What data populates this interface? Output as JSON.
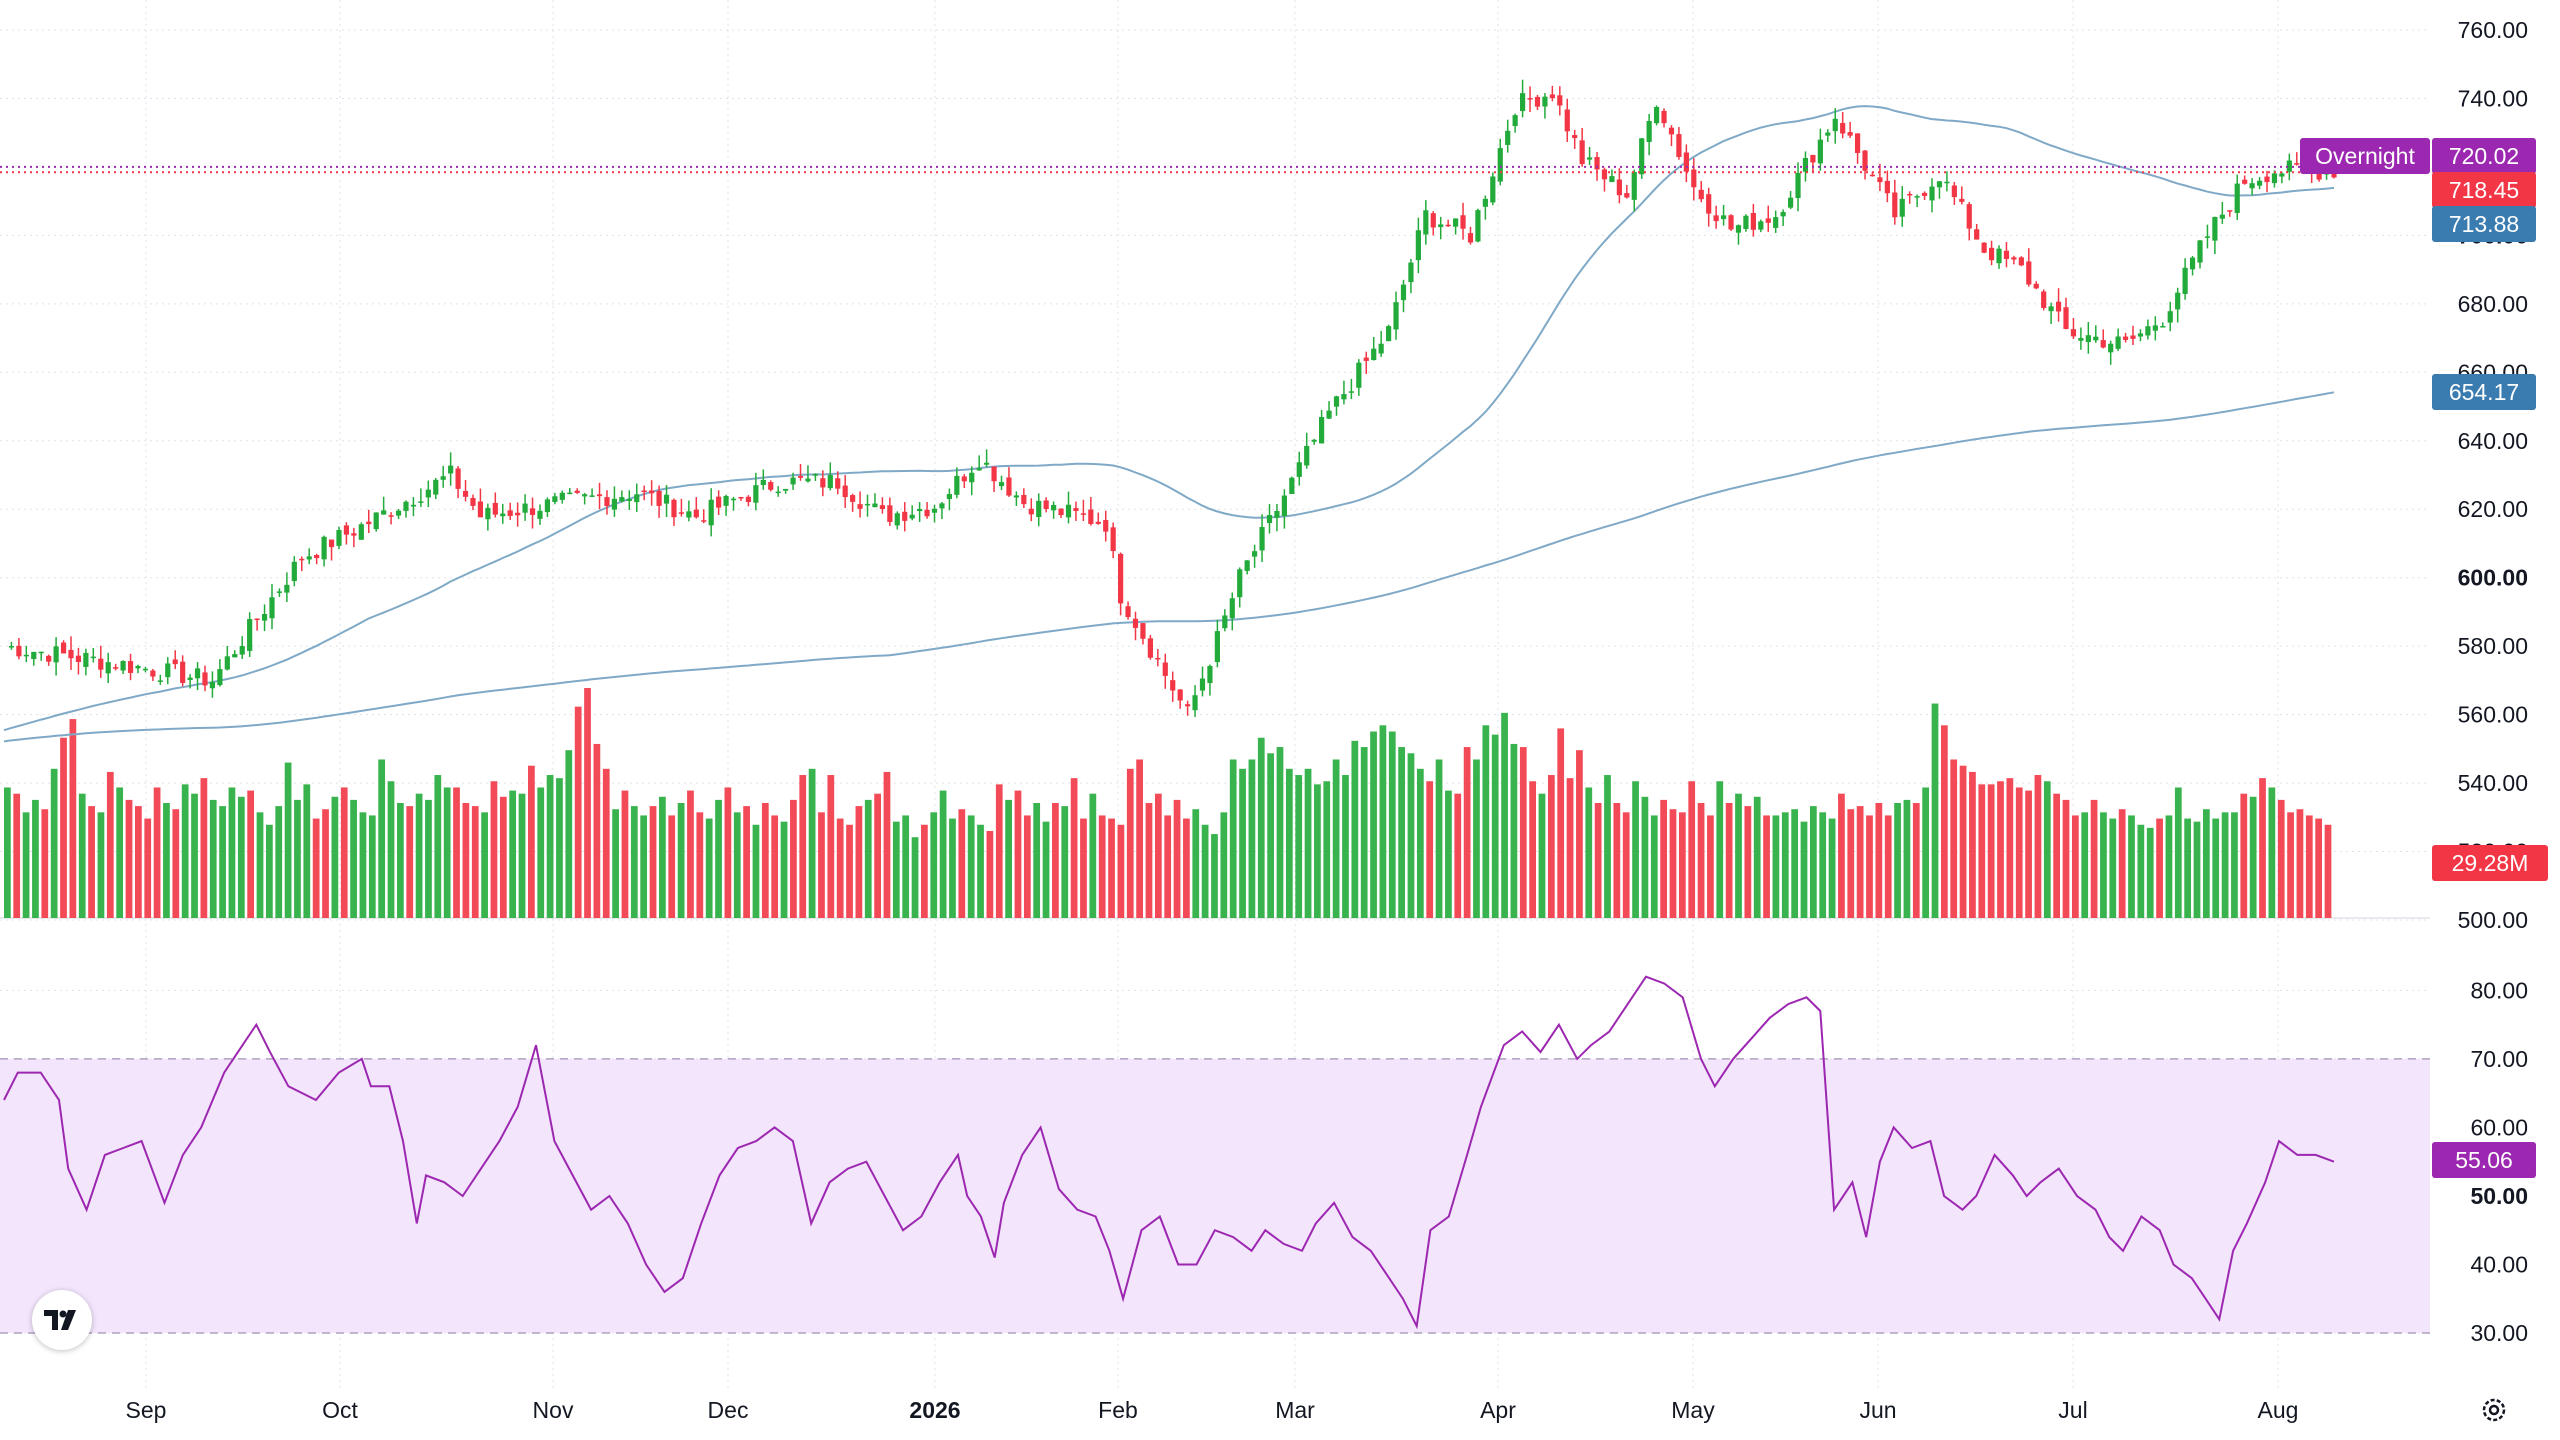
{
  "colors": {
    "up": "#22ab3a",
    "down": "#f23645",
    "ma_line": "#7fa9c6",
    "rsi_line": "#9c27b0",
    "rsi_band_fill": "#f3e5fc",
    "grid": "#e0e3eb",
    "text": "#131722",
    "badge_purple": "#9c27b0",
    "badge_red": "#f23645",
    "badge_blue": "#3a7bb0",
    "last_price_line": "#f23645"
  },
  "icons": {
    "logo": "tradingview-logo-icon",
    "settings": "gear-icon"
  },
  "price_labels": {
    "overnight_tag": "Overnight",
    "overnight_value": "720.02",
    "last_price": "718.45",
    "ma_short": "713.88",
    "ma_long": "654.17",
    "volume": "29.28M",
    "rsi": "55.06"
  },
  "chart_data": [
    {
      "type": "candlestick",
      "x_axis": {
        "labels": [
          "Sep",
          "Oct",
          "Nov",
          "Dec",
          "2026",
          "Feb",
          "Mar",
          "Apr",
          "May",
          "Jun",
          "Jul",
          "Aug"
        ],
        "bold": [
          "2026"
        ]
      },
      "y_axis": {
        "ticks": [
          "500.00",
          "520.00",
          "540.00",
          "560.00",
          "580.00",
          "600.00",
          "620.00",
          "640.00",
          "660.00",
          "680.00",
          "700.00",
          "720.00",
          "740.00",
          "760.00"
        ],
        "bold": [
          "600.00",
          "700.00"
        ],
        "range": [
          500,
          760
        ]
      },
      "series": [
        {
          "kind": "price",
          "shape_points": [
            [
              0,
              580
            ],
            [
              15,
              575
            ],
            [
              28,
              570
            ],
            [
              40,
              606
            ],
            [
              48,
              615
            ],
            [
              60,
              630
            ],
            [
              64,
              618
            ],
            [
              75,
              622
            ],
            [
              85,
              625
            ],
            [
              93,
              618
            ],
            [
              104,
              628
            ],
            [
              112,
              628
            ],
            [
              118,
              618
            ],
            [
              125,
              621
            ],
            [
              131,
              635
            ],
            [
              137,
              622
            ],
            [
              148,
              616
            ],
            [
              150,
              595
            ],
            [
              159,
              560
            ],
            [
              163,
              582
            ],
            [
              166,
              600
            ],
            [
              178,
              648
            ],
            [
              186,
              672
            ],
            [
              191,
              706
            ],
            [
              197,
              700
            ],
            [
              203,
              738
            ],
            [
              208,
              742
            ],
            [
              212,
              722
            ],
            [
              218,
              712
            ],
            [
              222,
              740
            ],
            [
              227,
              714
            ],
            [
              232,
              702
            ],
            [
              238,
              706
            ],
            [
              246,
              735
            ],
            [
              254,
              706
            ],
            [
              260,
              718
            ],
            [
              266,
              696
            ],
            [
              271,
              690
            ],
            [
              277,
              672
            ],
            [
              285,
              668
            ],
            [
              290,
              676
            ],
            [
              296,
              700
            ],
            [
              301,
              716
            ],
            [
              305,
              719
            ],
            [
              313,
              719
            ]
          ]
        },
        {
          "kind": "moving_average_short",
          "value": 713.88
        },
        {
          "kind": "moving_average_long",
          "value": 654.17
        }
      ]
    },
    {
      "type": "bar",
      "name": "Volume",
      "note": "relative heights, one bar per session",
      "values": [
        42,
        40,
        34,
        38,
        35,
        48,
        58,
        64,
        40,
        36,
        34,
        47,
        42,
        38,
        36,
        32,
        42,
        37,
        35,
        43,
        40,
        45,
        38,
        36,
        42,
        39,
        41,
        34,
        30,
        36,
        50,
        38,
        43,
        32,
        35,
        39,
        42,
        38,
        34,
        33,
        51,
        44,
        37,
        36,
        40,
        38,
        46,
        42,
        42,
        37,
        36,
        34,
        44,
        39,
        41,
        40,
        49,
        42,
        46,
        45,
        54,
        68,
        74,
        56,
        48,
        35,
        41,
        36,
        33,
        36,
        39,
        33,
        37,
        41,
        34,
        32,
        38,
        42,
        34,
        36,
        30,
        37,
        33,
        31,
        38,
        46,
        48,
        34,
        46,
        32,
        30,
        36,
        38,
        40,
        47,
        31,
        33,
        26,
        30,
        34,
        41,
        32,
        35,
        33,
        30,
        28,
        43,
        38,
        41,
        33,
        37,
        31,
        37,
        36,
        45,
        32,
        40,
        33,
        32,
        30,
        48,
        51,
        37,
        40,
        33,
        38,
        32,
        35,
        30,
        27,
        34,
        51,
        48,
        51,
        58,
        53,
        55,
        48,
        46,
        48,
        43,
        44,
        51,
        46,
        57,
        55,
        60,
        62,
        60,
        55,
        53,
        48,
        44,
        51,
        41,
        40,
        55,
        51,
        62,
        59,
        66,
        56,
        55,
        44,
        40,
        46,
        61,
        45,
        54,
        42,
        37,
        46,
        37,
        34,
        44,
        39,
        33,
        38,
        35,
        34,
        44,
        37,
        33,
        44,
        37,
        40,
        36,
        39,
        33,
        33,
        34,
        35,
        31,
        36,
        34,
        32,
        40,
        35,
        36,
        33,
        37,
        33,
        37,
        38,
        37,
        42,
        69,
        62,
        51,
        49,
        47,
        43,
        43,
        44,
        45,
        42,
        41,
        46,
        44,
        40,
        38,
        33,
        34,
        38,
        34,
        32,
        35,
        33,
        30,
        29,
        32,
        33,
        42,
        32,
        31,
        35,
        32,
        34,
        34,
        40,
        39,
        45,
        42,
        38,
        34,
        35,
        33,
        32,
        30
      ]
    },
    {
      "type": "line",
      "name": "RSI",
      "y_axis": {
        "ticks": [
          "30.00",
          "40.00",
          "50.00",
          "60.00",
          "70.00",
          "80.00"
        ],
        "bold": [
          "50.00"
        ],
        "range": [
          30,
          84
        ]
      },
      "band": [
        30,
        70
      ],
      "shape_points": [
        [
          0,
          64
        ],
        [
          3,
          68
        ],
        [
          8,
          68
        ],
        [
          12,
          64
        ],
        [
          14,
          54
        ],
        [
          18,
          48
        ],
        [
          22,
          56
        ],
        [
          26,
          57
        ],
        [
          30,
          58
        ],
        [
          35,
          49
        ],
        [
          39,
          56
        ],
        [
          43,
          60
        ],
        [
          48,
          68
        ],
        [
          52,
          72
        ],
        [
          55,
          75
        ],
        [
          58,
          71
        ],
        [
          62,
          66
        ],
        [
          68,
          64
        ],
        [
          73,
          68
        ],
        [
          78,
          70
        ],
        [
          80,
          66
        ],
        [
          84,
          66
        ],
        [
          87,
          58
        ],
        [
          90,
          46
        ],
        [
          92,
          53
        ],
        [
          96,
          52
        ],
        [
          100,
          50
        ],
        [
          104,
          54
        ],
        [
          108,
          58
        ],
        [
          112,
          63
        ],
        [
          116,
          72
        ],
        [
          120,
          58
        ],
        [
          124,
          53
        ],
        [
          128,
          48
        ],
        [
          132,
          50
        ],
        [
          136,
          46
        ],
        [
          140,
          40
        ],
        [
          144,
          36
        ],
        [
          148,
          38
        ],
        [
          152,
          46
        ],
        [
          156,
          53
        ],
        [
          160,
          57
        ],
        [
          164,
          58
        ],
        [
          168,
          60
        ],
        [
          172,
          58
        ],
        [
          176,
          46
        ],
        [
          180,
          52
        ],
        [
          184,
          54
        ],
        [
          188,
          55
        ],
        [
          192,
          50
        ],
        [
          196,
          45
        ],
        [
          200,
          47
        ],
        [
          204,
          52
        ],
        [
          208,
          56
        ],
        [
          210,
          50
        ],
        [
          213,
          47
        ],
        [
          216,
          41
        ],
        [
          218,
          49
        ],
        [
          222,
          56
        ],
        [
          226,
          60
        ],
        [
          230,
          51
        ],
        [
          234,
          48
        ],
        [
          238,
          47
        ],
        [
          241,
          42
        ],
        [
          244,
          35
        ],
        [
          248,
          45
        ],
        [
          252,
          47
        ],
        [
          256,
          40
        ],
        [
          260,
          40
        ],
        [
          264,
          45
        ],
        [
          268,
          44
        ],
        [
          272,
          42
        ],
        [
          275,
          45
        ],
        [
          279,
          43
        ],
        [
          283,
          42
        ],
        [
          286,
          46
        ],
        [
          290,
          49
        ],
        [
          294,
          44
        ],
        [
          298,
          42
        ],
        [
          302,
          38
        ],
        [
          305,
          35
        ],
        [
          308,
          31
        ],
        [
          311,
          45
        ],
        [
          315,
          47
        ],
        [
          319,
          56
        ],
        [
          322,
          63
        ],
        [
          327,
          72
        ],
        [
          331,
          74
        ],
        [
          335,
          71
        ],
        [
          339,
          75
        ],
        [
          343,
          70
        ],
        [
          346,
          72
        ],
        [
          350,
          74
        ],
        [
          354,
          78
        ],
        [
          358,
          82
        ],
        [
          362,
          81
        ],
        [
          366,
          79
        ],
        [
          370,
          70
        ],
        [
          373,
          66
        ],
        [
          377,
          70
        ],
        [
          381,
          73
        ],
        [
          385,
          76
        ],
        [
          389,
          78
        ],
        [
          393,
          79
        ],
        [
          396,
          77
        ],
        [
          399,
          48
        ],
        [
          403,
          52
        ],
        [
          406,
          44
        ],
        [
          409,
          55
        ],
        [
          412,
          60
        ],
        [
          416,
          57
        ],
        [
          420,
          58
        ],
        [
          423,
          50
        ],
        [
          427,
          48
        ],
        [
          430,
          50
        ],
        [
          434,
          56
        ],
        [
          438,
          53
        ],
        [
          441,
          50
        ],
        [
          444,
          52
        ],
        [
          448,
          54
        ],
        [
          452,
          50
        ],
        [
          456,
          48
        ],
        [
          459,
          44
        ],
        [
          462,
          42
        ],
        [
          466,
          47
        ],
        [
          470,
          45
        ],
        [
          473,
          40
        ],
        [
          477,
          38
        ],
        [
          480,
          35
        ],
        [
          483,
          32
        ],
        [
          486,
          42
        ],
        [
          489,
          46
        ],
        [
          493,
          52
        ],
        [
          496,
          58
        ],
        [
          500,
          56
        ],
        [
          504,
          56
        ],
        [
          508,
          55
        ]
      ]
    }
  ]
}
